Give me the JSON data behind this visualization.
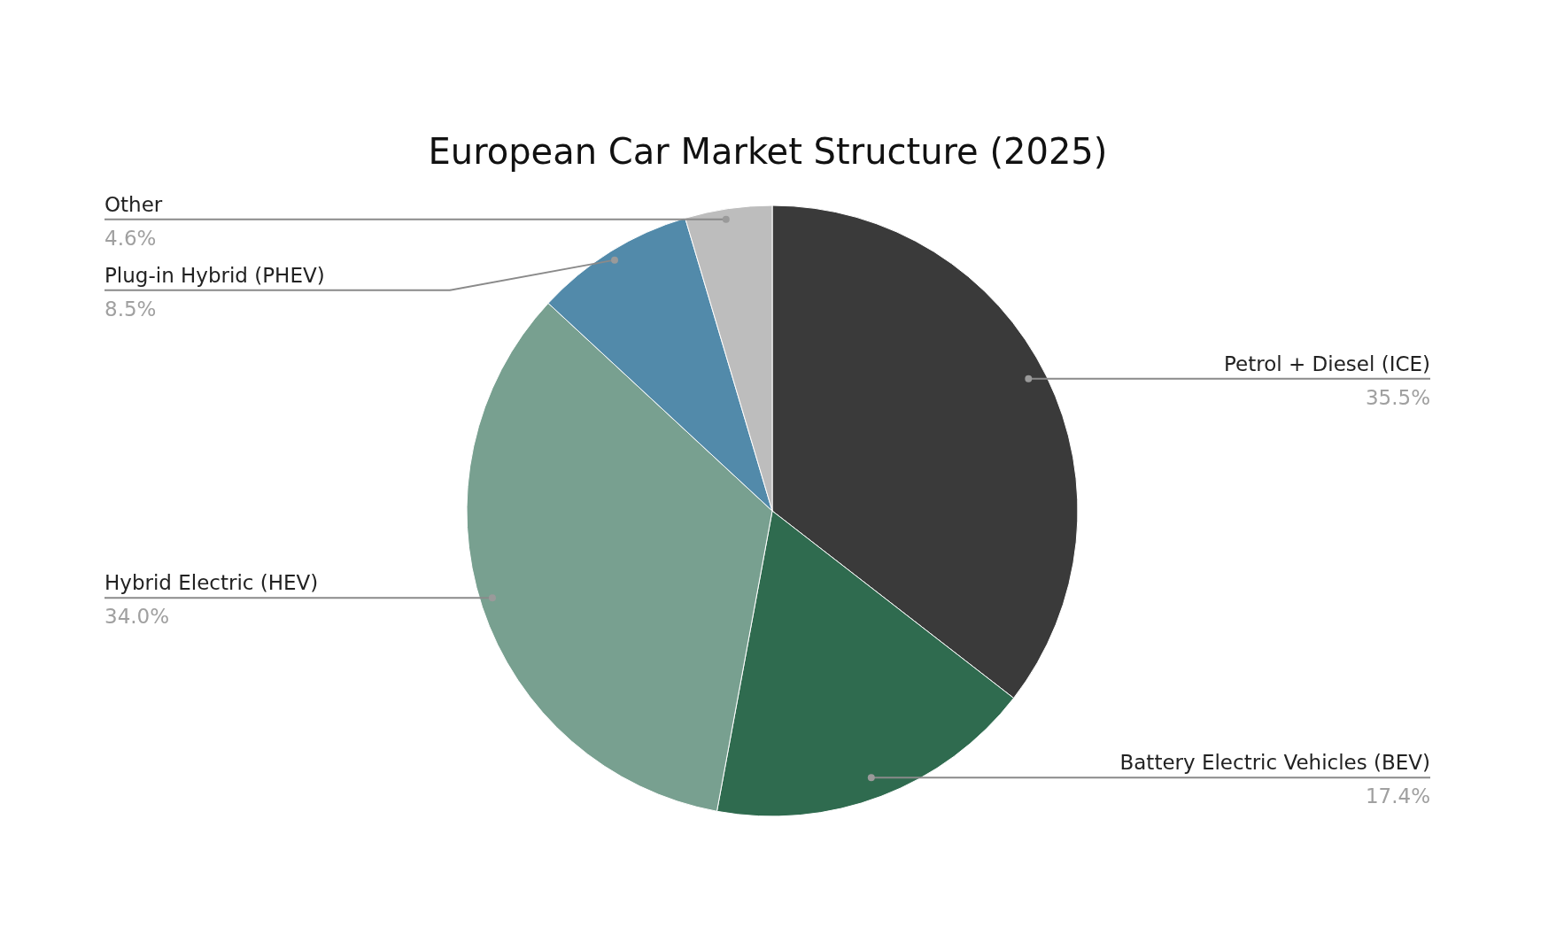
{
  "chart_data": {
    "type": "pie",
    "title": "European Car Market Structure (2025)",
    "categories": [
      "Petrol + Diesel (ICE)",
      "Battery Electric Vehicles (BEV)",
      "Hybrid Electric (HEV)",
      "Plug-in Hybrid (PHEV)",
      "Other"
    ],
    "values": [
      35.5,
      17.4,
      34.0,
      8.5,
      4.6
    ],
    "value_labels": [
      "35.5%",
      "17.4%",
      "34.0%",
      "8.5%",
      "4.6%"
    ],
    "colors": [
      "#3a3a3a",
      "#2f6b4f",
      "#78a090",
      "#528aaa",
      "#bdbdbd"
    ],
    "legend": false
  }
}
